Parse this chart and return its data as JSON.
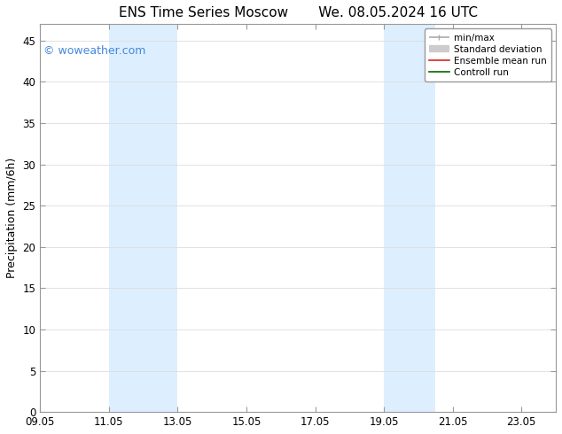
{
  "title_left": "ENS Time Series Moscow",
  "title_right": "We. 08.05.2024 16 UTC",
  "ylabel": "Precipitation (mm/6h)",
  "xlabel": "",
  "xlim": [
    9.05,
    24.05
  ],
  "ylim": [
    0,
    47
  ],
  "yticks": [
    0,
    5,
    10,
    15,
    20,
    25,
    30,
    35,
    40,
    45
  ],
  "xtick_labels": [
    "09.05",
    "11.05",
    "13.05",
    "15.05",
    "17.05",
    "19.05",
    "21.05",
    "23.05"
  ],
  "xtick_positions": [
    9.05,
    11.05,
    13.05,
    15.05,
    17.05,
    19.05,
    21.05,
    23.05
  ],
  "shaded_bands": [
    {
      "xmin": 11.05,
      "xmax": 13.05
    },
    {
      "xmin": 19.05,
      "xmax": 20.55
    }
  ],
  "band_color": "#ddeeff",
  "watermark_text": "© woweather.com",
  "watermark_color": "#4488dd",
  "watermark_fontsize": 9,
  "legend_entries": [
    {
      "label": "min/max",
      "color": "#aaaaaa",
      "lw": 1.2,
      "style": "minmax"
    },
    {
      "label": "Standard deviation",
      "color": "#cccccc",
      "lw": 6,
      "style": "thick"
    },
    {
      "label": "Ensemble mean run",
      "color": "#dd2222",
      "lw": 1.2,
      "style": "line"
    },
    {
      "label": "Controll run",
      "color": "#006600",
      "lw": 1.2,
      "style": "line"
    }
  ],
  "bg_color": "#ffffff",
  "grid_color": "#dddddd",
  "spine_color": "#999999",
  "tick_direction": "in",
  "title_fontsize": 11,
  "tick_fontsize": 8.5,
  "ylabel_fontsize": 9,
  "legend_fontsize": 7.5
}
